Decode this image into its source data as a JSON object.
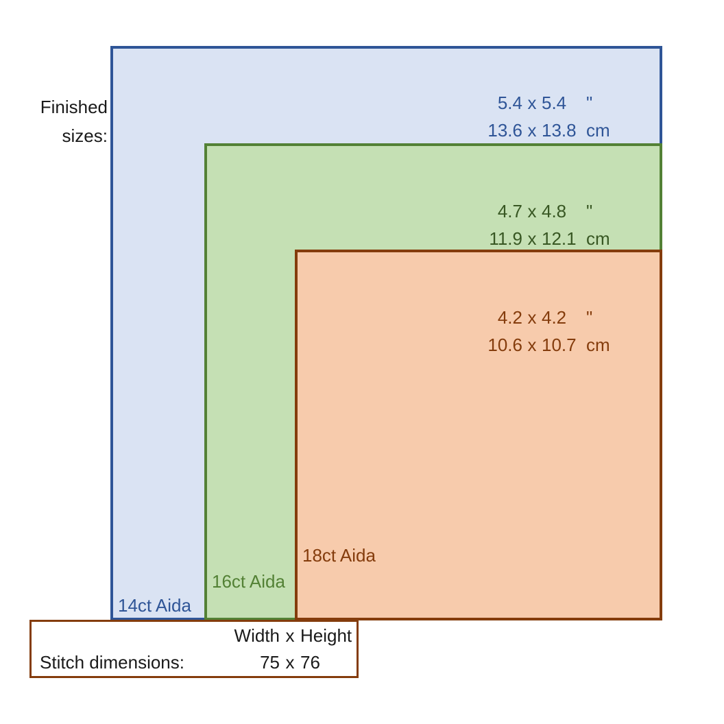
{
  "finished_sizes_label": {
    "line1": "Finished",
    "line2": "sizes:"
  },
  "multiply_sign": "x",
  "fabrics": [
    {
      "id": "14ct-aida",
      "label": "14ct Aida",
      "inches": {
        "w": "5.4",
        "h": "5.4",
        "unit": "\""
      },
      "cm": {
        "w": "13.6",
        "h": "13.8",
        "unit": "cm"
      },
      "colors": {
        "border": "#2F5597",
        "fill": "#DAE3F3",
        "text": "#2F5597",
        "label": "#2F5597"
      }
    },
    {
      "id": "16ct-aida",
      "label": "16ct Aida",
      "inches": {
        "w": "4.7",
        "h": "4.8",
        "unit": "\""
      },
      "cm": {
        "w": "11.9",
        "h": "12.1",
        "unit": "cm"
      },
      "colors": {
        "border": "#538135",
        "fill": "#C5E0B4",
        "text": "#385723",
        "label": "#538135"
      }
    },
    {
      "id": "18ct-aida",
      "label": "18ct Aida",
      "inches": {
        "w": "4.2",
        "h": "4.2",
        "unit": "\""
      },
      "cm": {
        "w": "10.6",
        "h": "10.7",
        "unit": "cm"
      },
      "colors": {
        "border": "#843C0C",
        "fill": "#F7CBAC",
        "text": "#843C0C",
        "label": "#843C0C"
      }
    }
  ],
  "stitch_box": {
    "border_color": "#843C0C",
    "header_col1": "Width",
    "header_col2": "Height",
    "label": "Stitch dimensions:",
    "width_value": "75",
    "height_value": "76"
  }
}
